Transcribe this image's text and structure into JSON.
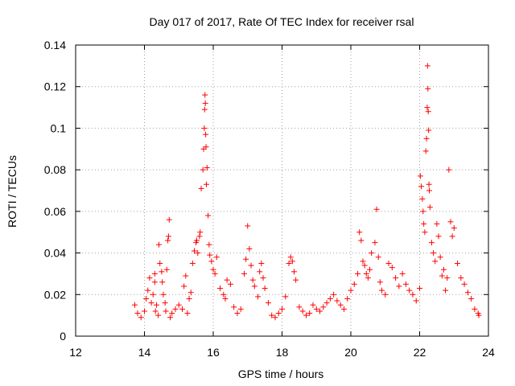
{
  "chart_data": {
    "type": "scatter",
    "title": "Day 017 of 2017, Rate Of TEC Index for receiver rsal",
    "xlabel": "GPS time / hours",
    "ylabel": "ROTI / TECUs",
    "xlim": [
      12,
      24
    ],
    "ylim": [
      0,
      0.14
    ],
    "xticks": [
      12,
      14,
      16,
      18,
      20,
      22,
      24
    ],
    "xtick_labels": [
      "12",
      "14",
      "16",
      "18",
      "20",
      "22",
      "24"
    ],
    "yticks": [
      0,
      0.02,
      0.04,
      0.06,
      0.08,
      0.1,
      0.12,
      0.14
    ],
    "ytick_labels": [
      "0",
      "0.02",
      "0.04",
      "0.06",
      "0.08",
      "0.1",
      "0.12",
      "0.14"
    ],
    "grid": true,
    "marker": "+",
    "series": [
      {
        "name": "ROTI",
        "color": "#ff0000",
        "x": [
          13.72,
          13.8,
          13.9,
          14.0,
          14.05,
          14.1,
          14.15,
          14.2,
          14.25,
          14.3,
          14.3,
          14.32,
          14.35,
          14.4,
          14.42,
          14.45,
          14.5,
          14.52,
          14.55,
          14.6,
          14.62,
          14.65,
          14.68,
          14.7,
          14.72,
          14.75,
          14.8,
          14.9,
          15.0,
          15.1,
          15.15,
          15.2,
          15.25,
          15.3,
          15.35,
          15.4,
          15.45,
          15.5,
          15.52,
          15.55,
          15.6,
          15.62,
          15.65,
          15.7,
          15.72,
          15.74,
          15.75,
          15.76,
          15.77,
          15.78,
          15.79,
          15.8,
          15.82,
          15.85,
          15.88,
          15.9,
          15.95,
          16.0,
          16.05,
          16.1,
          16.2,
          16.3,
          16.35,
          16.4,
          16.5,
          16.6,
          16.7,
          16.8,
          16.9,
          16.95,
          17.0,
          17.05,
          17.1,
          17.15,
          17.2,
          17.3,
          17.35,
          17.4,
          17.45,
          17.5,
          17.6,
          17.7,
          17.8,
          17.9,
          18.0,
          18.1,
          18.2,
          18.25,
          18.3,
          18.35,
          18.4,
          18.5,
          18.6,
          18.7,
          18.8,
          18.9,
          19.0,
          19.1,
          19.2,
          19.3,
          19.4,
          19.5,
          19.6,
          19.7,
          19.8,
          19.9,
          20.0,
          20.1,
          20.2,
          20.25,
          20.3,
          20.35,
          20.4,
          20.45,
          20.5,
          20.55,
          20.6,
          20.7,
          20.75,
          20.8,
          20.85,
          20.9,
          21.0,
          21.1,
          21.2,
          21.3,
          21.4,
          21.5,
          21.6,
          21.7,
          21.8,
          21.9,
          22.0,
          22.02,
          22.05,
          22.08,
          22.1,
          22.12,
          22.15,
          22.18,
          22.2,
          22.22,
          22.23,
          22.24,
          22.25,
          22.26,
          22.27,
          22.28,
          22.3,
          22.35,
          22.4,
          22.45,
          22.5,
          22.55,
          22.6,
          22.65,
          22.7,
          22.75,
          22.8,
          22.85,
          22.9,
          22.95,
          23.0,
          23.1,
          23.2,
          23.3,
          23.4,
          23.5,
          23.6,
          23.7,
          23.72
        ],
        "y": [
          0.015,
          0.011,
          0.009,
          0.012,
          0.018,
          0.022,
          0.028,
          0.016,
          0.02,
          0.026,
          0.03,
          0.012,
          0.015,
          0.01,
          0.044,
          0.035,
          0.031,
          0.026,
          0.02,
          0.016,
          0.012,
          0.032,
          0.046,
          0.048,
          0.056,
          0.009,
          0.011,
          0.013,
          0.015,
          0.013,
          0.024,
          0.029,
          0.011,
          0.018,
          0.021,
          0.035,
          0.041,
          0.045,
          0.046,
          0.04,
          0.048,
          0.05,
          0.071,
          0.08,
          0.09,
          0.1,
          0.109,
          0.116,
          0.112,
          0.097,
          0.091,
          0.073,
          0.081,
          0.058,
          0.044,
          0.039,
          0.036,
          0.032,
          0.03,
          0.038,
          0.023,
          0.02,
          0.018,
          0.027,
          0.025,
          0.014,
          0.011,
          0.013,
          0.03,
          0.037,
          0.053,
          0.042,
          0.034,
          0.027,
          0.024,
          0.019,
          0.031,
          0.035,
          0.028,
          0.023,
          0.016,
          0.01,
          0.009,
          0.011,
          0.013,
          0.019,
          0.035,
          0.038,
          0.036,
          0.031,
          0.027,
          0.014,
          0.012,
          0.01,
          0.011,
          0.015,
          0.013,
          0.012,
          0.014,
          0.016,
          0.018,
          0.02,
          0.017,
          0.015,
          0.013,
          0.018,
          0.022,
          0.025,
          0.03,
          0.05,
          0.046,
          0.036,
          0.034,
          0.03,
          0.028,
          0.032,
          0.04,
          0.045,
          0.061,
          0.038,
          0.026,
          0.022,
          0.02,
          0.035,
          0.033,
          0.028,
          0.024,
          0.03,
          0.025,
          0.022,
          0.02,
          0.017,
          0.023,
          0.077,
          0.072,
          0.066,
          0.06,
          0.054,
          0.05,
          0.089,
          0.095,
          0.11,
          0.13,
          0.119,
          0.108,
          0.099,
          0.073,
          0.07,
          0.062,
          0.045,
          0.04,
          0.036,
          0.054,
          0.048,
          0.038,
          0.029,
          0.032,
          0.022,
          0.028,
          0.08,
          0.055,
          0.048,
          0.052,
          0.035,
          0.028,
          0.025,
          0.021,
          0.018,
          0.013,
          0.011,
          0.01
        ]
      }
    ]
  }
}
